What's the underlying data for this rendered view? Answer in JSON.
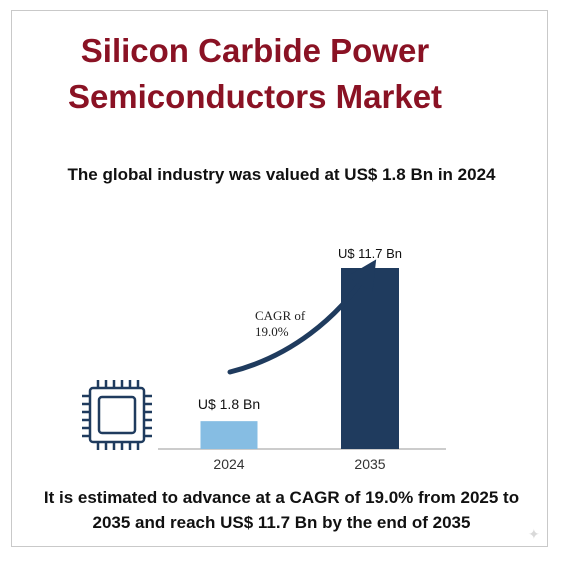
{
  "title_lines": [
    "Silicon Carbide Power",
    "Semiconductors Market"
  ],
  "subtitle": "The global industry was valued at US$ 1.8 Bn in 2024",
  "footer_lines": [
    "It is estimated to advance at a CAGR of 19.0% from 2025 to",
    "2035 and reach US$ 11.7 Bn by the end of 2035"
  ],
  "chip_icon": "microchip-icon",
  "sparkle_icon": "sparkle-icon",
  "colors": {
    "title": "#8a1224",
    "bar_2024": "#86bde3",
    "bar_2035": "#1f3b5e",
    "arrow": "#1f3b5e",
    "text": "#111111"
  },
  "chart_data": {
    "type": "bar",
    "categories": [
      "2024",
      "2035"
    ],
    "values": [
      1.8,
      11.7
    ],
    "data_labels": [
      "U$ 1.8 Bn",
      "U$ 11.7 Bn"
    ],
    "annotation": [
      "CAGR of",
      "19.0%"
    ],
    "ylim": [
      0,
      11.7
    ],
    "grid": false
  }
}
